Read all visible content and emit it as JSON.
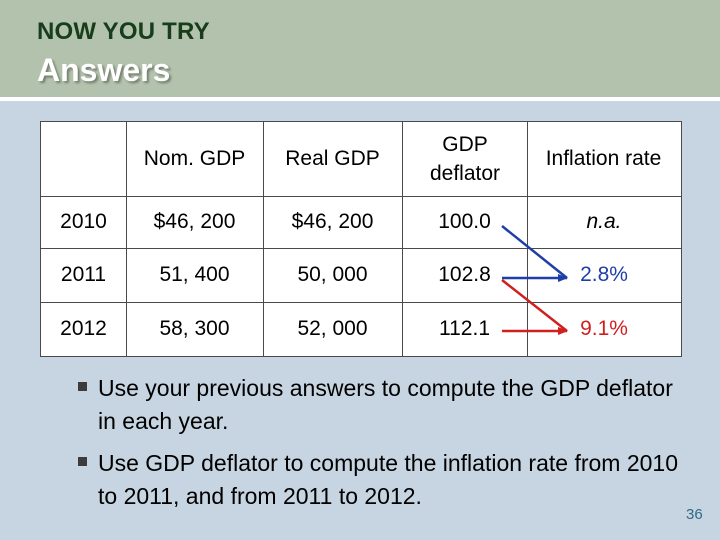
{
  "header": {
    "kicker": "NOW YOU TRY",
    "title": "Answers"
  },
  "table": {
    "columns": [
      "",
      "Nom. GDP",
      "Real GDP",
      "GDP deflator",
      "Inflation rate"
    ],
    "rows": [
      {
        "year": "2010",
        "nom_gdp": "$46, 200",
        "real_gdp": "$46, 200",
        "deflator": "100.0",
        "inflation": "n.a."
      },
      {
        "year": "2011",
        "nom_gdp": "51, 400",
        "real_gdp": "50, 000",
        "deflator": "102.8",
        "inflation": "2.8%"
      },
      {
        "year": "2012",
        "nom_gdp": "58, 300",
        "real_gdp": "52, 000",
        "deflator": "112.1",
        "inflation": "9.1%"
      }
    ]
  },
  "colors": {
    "arrow_2011": "#1f3fa8",
    "arrow_2012": "#d01f1f",
    "inflation_2011": "#1f3fa8",
    "inflation_2012": "#d01f1f"
  },
  "bullets": [
    "Use your previous answers to compute the GDP deflator in each year.",
    "Use GDP deflator to compute the inflation rate from 2010 to 2011, and from 2011 to 2012."
  ],
  "page_number": "36"
}
